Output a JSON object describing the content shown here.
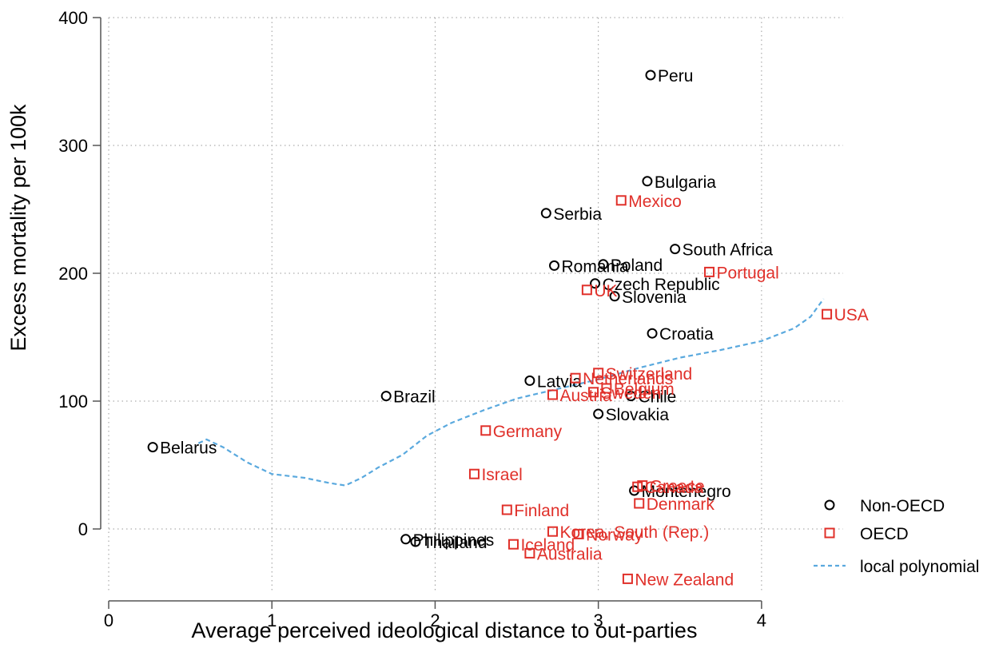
{
  "chart_data": {
    "type": "scatter",
    "xlabel": "Average perceived ideological distance to out-parties",
    "ylabel": "Excess mortality per 100k",
    "xlim": [
      0,
      4.5
    ],
    "ylim": [
      -50,
      400
    ],
    "xticks": [
      "0",
      "1",
      "2",
      "3",
      "4"
    ],
    "yticks": [
      "0",
      "100",
      "200",
      "300",
      "400"
    ],
    "grid": true,
    "legend_position": "right",
    "legend": [
      "Non-OECD",
      "OECD",
      "local polynomial"
    ],
    "colors": {
      "non_oecd": "#000000",
      "oecd": "#e0302a",
      "polynomial": "#5aa9de"
    },
    "series": [
      {
        "name": "Non-OECD",
        "marker": "circle",
        "points": [
          {
            "label": "Peru",
            "x": 3.32,
            "y": 355
          },
          {
            "label": "Bulgaria",
            "x": 3.3,
            "y": 272
          },
          {
            "label": "Serbia",
            "x": 2.68,
            "y": 247
          },
          {
            "label": "South Africa",
            "x": 3.47,
            "y": 219
          },
          {
            "label": "Romania",
            "x": 2.73,
            "y": 206
          },
          {
            "label": "Poland",
            "x": 3.03,
            "y": 207
          },
          {
            "label": "Czech Republic",
            "x": 2.98,
            "y": 192
          },
          {
            "label": "Slovenia",
            "x": 3.1,
            "y": 182
          },
          {
            "label": "Croatia",
            "x": 3.33,
            "y": 153
          },
          {
            "label": "Latvia",
            "x": 2.58,
            "y": 116
          },
          {
            "label": "Chile",
            "x": 3.2,
            "y": 104
          },
          {
            "label": "Slovakia",
            "x": 3.0,
            "y": 90
          },
          {
            "label": "Brazil",
            "x": 1.7,
            "y": 104
          },
          {
            "label": "Belarus",
            "x": 0.27,
            "y": 64
          },
          {
            "label": "Montenegro",
            "x": 3.22,
            "y": 30
          },
          {
            "label": "Philippines",
            "x": 1.82,
            "y": -8
          },
          {
            "label": "Thailand",
            "x": 1.88,
            "y": -10
          }
        ]
      },
      {
        "name": "OECD",
        "marker": "square",
        "points": [
          {
            "label": "Mexico",
            "x": 3.14,
            "y": 257
          },
          {
            "label": "Portugal",
            "x": 3.68,
            "y": 201
          },
          {
            "label": "UK",
            "x": 2.93,
            "y": 187
          },
          {
            "label": "USA",
            "x": 4.4,
            "y": 168
          },
          {
            "label": "Switzerland",
            "x": 3.0,
            "y": 122
          },
          {
            "label": "Netherlands",
            "x": 2.86,
            "y": 118
          },
          {
            "label": "Belgium",
            "x": 3.05,
            "y": 110
          },
          {
            "label": "Sweden",
            "x": 2.97,
            "y": 107
          },
          {
            "label": "Austria",
            "x": 2.72,
            "y": 105
          },
          {
            "label": "Germany",
            "x": 2.31,
            "y": 77
          },
          {
            "label": "Israel",
            "x": 2.24,
            "y": 43
          },
          {
            "label": "Greece",
            "x": 3.27,
            "y": 34
          },
          {
            "label": "Canada",
            "x": 3.24,
            "y": 33
          },
          {
            "label": "Denmark",
            "x": 3.25,
            "y": 20
          },
          {
            "label": "Finland",
            "x": 2.44,
            "y": 15
          },
          {
            "label": "Korea, South (Rep.)",
            "x": 2.72,
            "y": -2
          },
          {
            "label": "Norway",
            "x": 2.88,
            "y": -4
          },
          {
            "label": "Iceland",
            "x": 2.48,
            "y": -12
          },
          {
            "label": "Australia",
            "x": 2.58,
            "y": -19
          },
          {
            "label": "New Zealand",
            "x": 3.18,
            "y": -39
          }
        ]
      },
      {
        "name": "local polynomial",
        "line_style": "dashed",
        "points": [
          {
            "x": 0.55,
            "y": 67
          },
          {
            "x": 0.6,
            "y": 70
          },
          {
            "x": 0.7,
            "y": 64
          },
          {
            "x": 0.85,
            "y": 52
          },
          {
            "x": 1.0,
            "y": 43
          },
          {
            "x": 1.2,
            "y": 40
          },
          {
            "x": 1.35,
            "y": 36
          },
          {
            "x": 1.45,
            "y": 34
          },
          {
            "x": 1.55,
            "y": 40
          },
          {
            "x": 1.65,
            "y": 48
          },
          {
            "x": 1.8,
            "y": 58
          },
          {
            "x": 1.95,
            "y": 73
          },
          {
            "x": 2.1,
            "y": 83
          },
          {
            "x": 2.3,
            "y": 93
          },
          {
            "x": 2.5,
            "y": 102
          },
          {
            "x": 2.7,
            "y": 108
          },
          {
            "x": 3.0,
            "y": 117
          },
          {
            "x": 3.25,
            "y": 126
          },
          {
            "x": 3.5,
            "y": 134
          },
          {
            "x": 3.75,
            "y": 140
          },
          {
            "x": 4.0,
            "y": 147
          },
          {
            "x": 4.2,
            "y": 157
          },
          {
            "x": 4.3,
            "y": 166
          },
          {
            "x": 4.38,
            "y": 180
          }
        ]
      }
    ]
  }
}
